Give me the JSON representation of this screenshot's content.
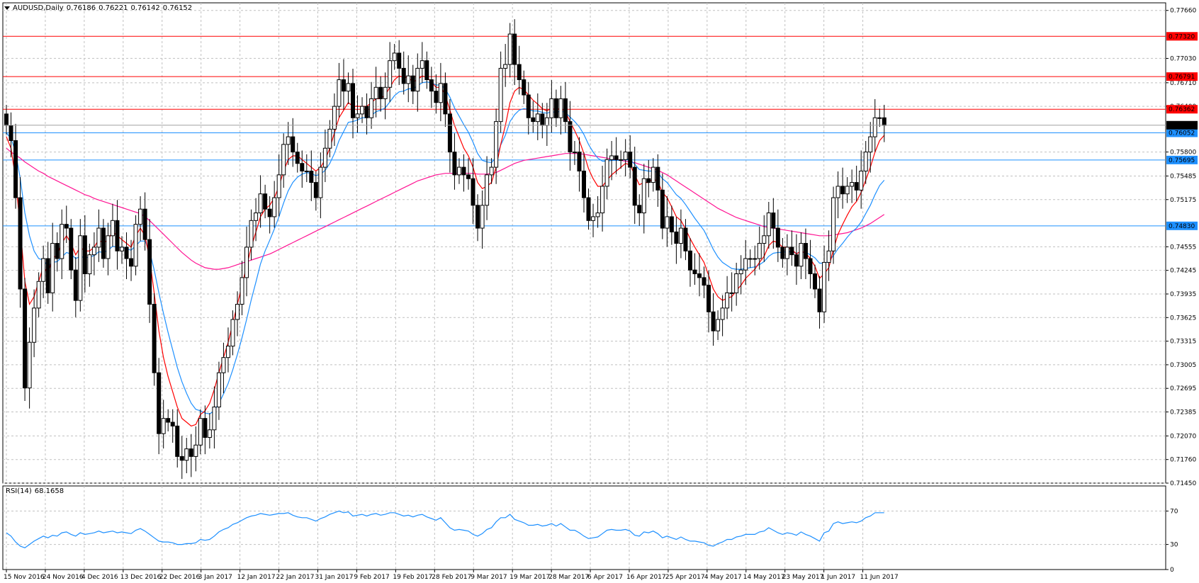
{
  "header": {
    "symbol": "AUDUSD,Daily",
    "open": "0.76186",
    "high": "0.76221",
    "low": "0.76142",
    "close": "0.76152"
  },
  "rsi_header": {
    "name": "RSI(14)",
    "value": "68.1658"
  },
  "colors": {
    "bull_body": "#ffffff",
    "bear_body": "#000000",
    "candle_outline": "#000000",
    "ma_fast": "#ff0000",
    "ma_mid": "#1e90ff",
    "ma_slow": "#ff1493",
    "resistance": "#ff0000",
    "support": "#1e90ff",
    "current_price_bg": "#000000",
    "rsi_line": "#1e90ff",
    "grid": "#c0c0c0"
  },
  "chart_data": [
    {
      "type": "candlestick",
      "series_name": "AUDUSD,Daily",
      "price_axis_labels": [
        "0.77660",
        "0.77030",
        "0.76710",
        "0.76400",
        "0.75800",
        "0.75485",
        "0.75175",
        "0.74555",
        "0.74245",
        "0.73935",
        "0.73625",
        "0.73315",
        "0.73005",
        "0.72695",
        "0.72385",
        "0.72070",
        "0.71760",
        "0.71450"
      ],
      "ylim": [
        0.7145,
        0.7776
      ],
      "grid": true,
      "time_axis_labels": [
        "15 Nov 2016",
        "24 Nov 2016",
        "4 Dec 2016",
        "13 Dec 2016",
        "22 Dec 2016",
        "3 Jan 2017",
        "12 Jan 2017",
        "22 Jan 2017",
        "31 Jan 2017",
        "9 Feb 2017",
        "19 Feb 2017",
        "28 Feb 2017",
        "9 Mar 2017",
        "19 Mar 2017",
        "28 Mar 2017",
        "6 Apr 2017",
        "16 Apr 2017",
        "25 Apr 2017",
        "4 May 2017",
        "14 May 2017",
        "23 May 2017",
        "1 Jun 2017",
        "11 Jun 2017"
      ],
      "horizontal_levels": [
        {
          "value": 0.7732,
          "label": "0.77320",
          "kind": "resistance"
        },
        {
          "value": 0.76791,
          "label": "0.76791",
          "kind": "resistance"
        },
        {
          "value": 0.76362,
          "label": "0.76362",
          "kind": "resistance"
        },
        {
          "value": 0.76052,
          "label": "0.76052",
          "kind": "support"
        },
        {
          "value": 0.75695,
          "label": "0.75695",
          "kind": "support"
        },
        {
          "value": 0.7483,
          "label": "0.74830",
          "kind": "support"
        }
      ],
      "current_price": {
        "value": 0.76152,
        "label": "0.76152"
      },
      "closes": [
        0.7615,
        0.7595,
        0.752,
        0.74,
        0.727,
        0.733,
        0.7375,
        0.741,
        0.744,
        0.7395,
        0.746,
        0.744,
        0.7485,
        0.748,
        0.7425,
        0.7385,
        0.747,
        0.742,
        0.7445,
        0.7455,
        0.748,
        0.744,
        0.747,
        0.749,
        0.745,
        0.7455,
        0.744,
        0.743,
        0.7485,
        0.7505,
        0.7465,
        0.738,
        0.729,
        0.721,
        0.723,
        0.7225,
        0.722,
        0.718,
        0.7175,
        0.719,
        0.718,
        0.7195,
        0.723,
        0.7205,
        0.7215,
        0.7245,
        0.729,
        0.731,
        0.7325,
        0.736,
        0.738,
        0.7415,
        0.7455,
        0.749,
        0.75,
        0.7525,
        0.7505,
        0.7495,
        0.752,
        0.755,
        0.759,
        0.76,
        0.758,
        0.7565,
        0.7555,
        0.7555,
        0.754,
        0.752,
        0.756,
        0.7585,
        0.761,
        0.764,
        0.7675,
        0.766,
        0.767,
        0.7625,
        0.763,
        0.764,
        0.7625,
        0.765,
        0.7665,
        0.765,
        0.7665,
        0.77,
        0.771,
        0.769,
        0.767,
        0.768,
        0.766,
        0.769,
        0.77,
        0.7675,
        0.766,
        0.7645,
        0.767,
        0.763,
        0.758,
        0.755,
        0.756,
        0.755,
        0.7545,
        0.751,
        0.748,
        0.751,
        0.755,
        0.756,
        0.762,
        0.769,
        0.7695,
        0.7735,
        0.7695,
        0.7675,
        0.7655,
        0.7625,
        0.762,
        0.763,
        0.7615,
        0.7625,
        0.765,
        0.7625,
        0.765,
        0.762,
        0.758,
        0.758,
        0.7555,
        0.752,
        0.749,
        0.7495,
        0.75,
        0.7535,
        0.757,
        0.7575,
        0.757,
        0.757,
        0.758,
        0.756,
        0.751,
        0.75,
        0.7545,
        0.754,
        0.756,
        0.753,
        0.748,
        0.7495,
        0.7475,
        0.746,
        0.748,
        0.745,
        0.7425,
        0.742,
        0.7415,
        0.7405,
        0.737,
        0.7345,
        0.736,
        0.7375,
        0.7395,
        0.7395,
        0.742,
        0.7425,
        0.744,
        0.744,
        0.744,
        0.746,
        0.747,
        0.75,
        0.748,
        0.7455,
        0.744,
        0.7455,
        0.7445,
        0.743,
        0.746,
        0.744,
        0.742,
        0.74,
        0.737,
        0.7435,
        0.745,
        0.752,
        0.7535,
        0.7525,
        0.7535,
        0.754,
        0.753,
        0.7555,
        0.758,
        0.76,
        0.7625,
        0.7625,
        0.7615
      ],
      "moving_average_fast": [
        0.76,
        0.7585,
        0.7545,
        0.748,
        0.741,
        0.738,
        0.739,
        0.741,
        0.743,
        0.742,
        0.744,
        0.7445,
        0.746,
        0.747,
        0.746,
        0.7445,
        0.7455,
        0.745,
        0.745,
        0.7455,
        0.7465,
        0.746,
        0.7465,
        0.7475,
        0.747,
        0.7465,
        0.746,
        0.7455,
        0.747,
        0.748,
        0.747,
        0.744,
        0.7395,
        0.7345,
        0.731,
        0.7285,
        0.7265,
        0.7245,
        0.723,
        0.7225,
        0.722,
        0.7222,
        0.7235,
        0.724,
        0.725,
        0.7268,
        0.729,
        0.731,
        0.733,
        0.7355,
        0.738,
        0.7405,
        0.743,
        0.7455,
        0.7475,
        0.7495,
        0.7505,
        0.751,
        0.752,
        0.7535,
        0.7555,
        0.757,
        0.7575,
        0.7575,
        0.757,
        0.7565,
        0.756,
        0.7555,
        0.756,
        0.757,
        0.7585,
        0.7605,
        0.7625,
        0.7635,
        0.7645,
        0.764,
        0.764,
        0.764,
        0.764,
        0.7645,
        0.765,
        0.765,
        0.7655,
        0.7665,
        0.7675,
        0.768,
        0.7678,
        0.7678,
        0.7672,
        0.7675,
        0.768,
        0.7678,
        0.7672,
        0.7665,
        0.7665,
        0.7655,
        0.7635,
        0.7615,
        0.76,
        0.7585,
        0.7575,
        0.756,
        0.754,
        0.7532,
        0.7535,
        0.754,
        0.756,
        0.759,
        0.7615,
        0.7645,
        0.766,
        0.7665,
        0.7662,
        0.7655,
        0.7648,
        0.7643,
        0.7637,
        0.7634,
        0.7638,
        0.7635,
        0.7638,
        0.7633,
        0.762,
        0.7608,
        0.7595,
        0.7578,
        0.7558,
        0.7545,
        0.7535,
        0.7535,
        0.7543,
        0.755,
        0.7555,
        0.756,
        0.7565,
        0.7563,
        0.755,
        0.7537,
        0.754,
        0.754,
        0.7545,
        0.7541,
        0.7527,
        0.752,
        0.7508,
        0.7495,
        0.749,
        0.7479,
        0.7466,
        0.7455,
        0.7445,
        0.7435,
        0.7418,
        0.74,
        0.739,
        0.7385,
        0.7388,
        0.739,
        0.7398,
        0.7405,
        0.7414,
        0.742,
        0.7426,
        0.7435,
        0.7443,
        0.7457,
        0.7463,
        0.7461,
        0.7455,
        0.7455,
        0.7452,
        0.7446,
        0.745,
        0.7447,
        0.744,
        0.743,
        0.7414,
        0.742,
        0.7428,
        0.7452,
        0.7472,
        0.7485,
        0.7497,
        0.7508,
        0.7515,
        0.7527,
        0.7543,
        0.756,
        0.758,
        0.7595,
        0.7602
      ],
      "moving_average_mid": [
        0.7605,
        0.7598,
        0.758,
        0.7545,
        0.75,
        0.747,
        0.745,
        0.744,
        0.7438,
        0.743,
        0.7435,
        0.7436,
        0.7442,
        0.7448,
        0.7446,
        0.744,
        0.7443,
        0.7441,
        0.7442,
        0.7444,
        0.7449,
        0.7448,
        0.7451,
        0.7456,
        0.7455,
        0.7455,
        0.7453,
        0.7451,
        0.7457,
        0.7463,
        0.7463,
        0.745,
        0.7425,
        0.7395,
        0.7368,
        0.7343,
        0.732,
        0.7297,
        0.7278,
        0.7263,
        0.725,
        0.7242,
        0.724,
        0.7237,
        0.7236,
        0.724,
        0.725,
        0.7262,
        0.7276,
        0.7294,
        0.7314,
        0.7336,
        0.736,
        0.7386,
        0.7409,
        0.7433,
        0.745,
        0.7464,
        0.7479,
        0.7495,
        0.7513,
        0.7529,
        0.754,
        0.7547,
        0.7551,
        0.7553,
        0.7552,
        0.7549,
        0.7551,
        0.7556,
        0.7565,
        0.7578,
        0.7595,
        0.7607,
        0.7619,
        0.762,
        0.7622,
        0.7625,
        0.7625,
        0.7628,
        0.7633,
        0.7635,
        0.7638,
        0.7646,
        0.7654,
        0.7659,
        0.766,
        0.7663,
        0.7663,
        0.7667,
        0.7671,
        0.7672,
        0.7671,
        0.7668,
        0.7668,
        0.7663,
        0.7652,
        0.7638,
        0.7627,
        0.7616,
        0.7606,
        0.7593,
        0.7578,
        0.7569,
        0.7567,
        0.7566,
        0.7573,
        0.7589,
        0.7602,
        0.762,
        0.7629,
        0.7635,
        0.7637,
        0.7636,
        0.7634,
        0.7634,
        0.7632,
        0.7631,
        0.7633,
        0.7632,
        0.7634,
        0.7632,
        0.7626,
        0.762,
        0.7613,
        0.7603,
        0.759,
        0.758,
        0.7572,
        0.7568,
        0.7568,
        0.7569,
        0.7569,
        0.7569,
        0.7571,
        0.757,
        0.7564,
        0.7557,
        0.7556,
        0.7555,
        0.7555,
        0.7553,
        0.7545,
        0.754,
        0.7532,
        0.7524,
        0.7519,
        0.7511,
        0.7502,
        0.7493,
        0.7485,
        0.7477,
        0.7465,
        0.7452,
        0.7442,
        0.7435,
        0.7431,
        0.7427,
        0.7426,
        0.7426,
        0.7427,
        0.7428,
        0.7429,
        0.7432,
        0.7436,
        0.7443,
        0.7447,
        0.7448,
        0.7448,
        0.7449,
        0.7449,
        0.7447,
        0.7448,
        0.7448,
        0.7445,
        0.7441,
        0.7434,
        0.7434,
        0.7436,
        0.7444,
        0.7453,
        0.746,
        0.7468,
        0.7475,
        0.748,
        0.7488,
        0.7499,
        0.751,
        0.7524,
        0.7536,
        0.7543
      ],
      "moving_average_slow": [
        0.7585,
        0.758,
        0.7576,
        0.7572,
        0.7567,
        0.7563,
        0.7559,
        0.7555,
        0.7552,
        0.7548,
        0.7545,
        0.7542,
        0.7539,
        0.7536,
        0.7533,
        0.753,
        0.7527,
        0.7524,
        0.7522,
        0.7519,
        0.7517,
        0.7515,
        0.7513,
        0.7511,
        0.7509,
        0.7507,
        0.7505,
        0.7503,
        0.7501,
        0.7499,
        0.7495,
        0.749,
        0.7484,
        0.7478,
        0.7472,
        0.7466,
        0.746,
        0.7454,
        0.7448,
        0.7443,
        0.7438,
        0.7434,
        0.7431,
        0.7428,
        0.7427,
        0.7426,
        0.7426,
        0.7427,
        0.7428,
        0.743,
        0.7432,
        0.7434,
        0.7436,
        0.7438,
        0.744,
        0.7442,
        0.7444,
        0.7446,
        0.7449,
        0.7452,
        0.7455,
        0.7458,
        0.7461,
        0.7464,
        0.7467,
        0.747,
        0.7473,
        0.7476,
        0.7479,
        0.7482,
        0.7485,
        0.7488,
        0.7491,
        0.7494,
        0.7497,
        0.75,
        0.7503,
        0.7506,
        0.7509,
        0.7512,
        0.7515,
        0.7518,
        0.7521,
        0.7524,
        0.7527,
        0.753,
        0.7533,
        0.7536,
        0.7539,
        0.7542,
        0.7544,
        0.7546,
        0.7548,
        0.755,
        0.7551,
        0.7552,
        0.7552,
        0.7552,
        0.7552,
        0.7552,
        0.7552,
        0.7552,
        0.7551,
        0.7551,
        0.7551,
        0.7552,
        0.7553,
        0.7556,
        0.7559,
        0.7562,
        0.7565,
        0.7567,
        0.7569,
        0.757,
        0.7571,
        0.7572,
        0.7573,
        0.7574,
        0.7575,
        0.7576,
        0.7577,
        0.7578,
        0.7578,
        0.7578,
        0.7578,
        0.7577,
        0.7576,
        0.7575,
        0.7574,
        0.7573,
        0.7572,
        0.7571,
        0.757,
        0.7569,
        0.7568,
        0.7567,
        0.7566,
        0.7564,
        0.7562,
        0.756,
        0.7558,
        0.7556,
        0.7553,
        0.755,
        0.7546,
        0.7542,
        0.7538,
        0.7534,
        0.753,
        0.7526,
        0.7522,
        0.7518,
        0.7514,
        0.751,
        0.7506,
        0.7503,
        0.75,
        0.7497,
        0.7494,
        0.7492,
        0.749,
        0.7488,
        0.7486,
        0.7484,
        0.7482,
        0.7481,
        0.748,
        0.7479,
        0.7478,
        0.7477,
        0.7476,
        0.7475,
        0.7474,
        0.7473,
        0.7472,
        0.7471,
        0.747,
        0.747,
        0.747,
        0.7471,
        0.7472,
        0.7473,
        0.7474,
        0.7476,
        0.7478,
        0.748,
        0.7483,
        0.7486,
        0.749,
        0.7494,
        0.7498
      ]
    },
    {
      "type": "line",
      "series_name": "RSI(14)",
      "y_axis_labels": [
        "70",
        "30",
        "0"
      ],
      "ylim": [
        0,
        100
      ],
      "levels": [
        70,
        30
      ],
      "values": [
        44,
        40,
        33,
        28,
        26,
        30,
        34,
        37,
        40,
        38,
        41,
        40,
        44,
        45,
        42,
        40,
        44,
        42,
        43,
        44,
        46,
        44,
        45,
        46,
        44,
        45,
        44,
        43,
        47,
        49,
        46,
        42,
        38,
        34,
        33,
        33,
        32,
        30,
        30,
        31,
        31,
        32,
        36,
        35,
        36,
        40,
        45,
        48,
        50,
        54,
        56,
        59,
        62,
        64,
        65,
        67,
        66,
        65,
        66,
        67,
        67,
        68,
        65,
        63,
        62,
        62,
        60,
        58,
        61,
        63,
        66,
        68,
        70,
        68,
        69,
        64,
        65,
        66,
        64,
        66,
        67,
        65,
        66,
        68,
        68,
        66,
        64,
        65,
        63,
        65,
        66,
        63,
        61,
        59,
        62,
        56,
        50,
        47,
        48,
        47,
        46,
        42,
        40,
        43,
        48,
        50,
        57,
        62,
        62,
        66,
        60,
        58,
        56,
        53,
        53,
        54,
        52,
        53,
        55,
        52,
        55,
        51,
        47,
        47,
        44,
        40,
        37,
        38,
        39,
        43,
        47,
        48,
        47,
        47,
        48,
        46,
        41,
        40,
        45,
        44,
        46,
        43,
        38,
        40,
        38,
        36,
        39,
        36,
        34,
        34,
        33,
        32,
        29,
        28,
        31,
        33,
        36,
        36,
        39,
        40,
        42,
        42,
        42,
        45,
        46,
        50,
        47,
        44,
        42,
        44,
        43,
        41,
        45,
        42,
        40,
        37,
        34,
        44,
        46,
        55,
        57,
        55,
        56,
        57,
        56,
        58,
        62,
        64,
        68,
        68,
        68
      ]
    }
  ]
}
